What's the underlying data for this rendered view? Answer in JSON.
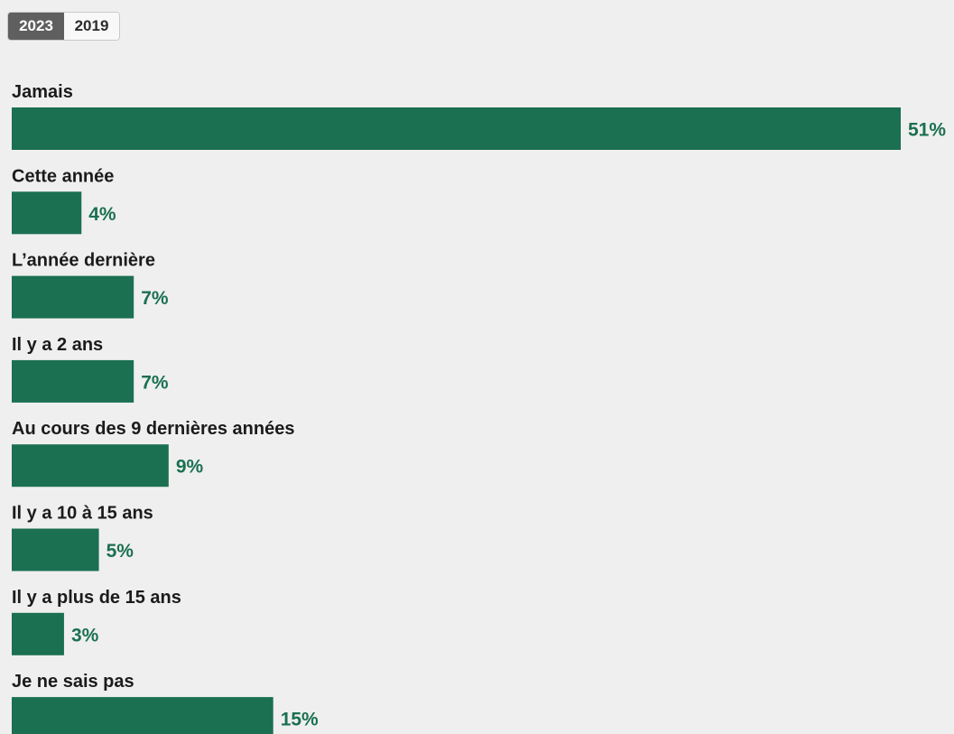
{
  "year_toggle": {
    "options": [
      {
        "label": "2023",
        "selected": true
      },
      {
        "label": "2019",
        "selected": false
      }
    ]
  },
  "colors": {
    "bar": "#1b7051",
    "value_text": "#1b7051",
    "background": "#efefef"
  },
  "chart_data": {
    "type": "bar",
    "orientation": "horizontal",
    "unit": "%",
    "categories": [
      "Jamais",
      "Cette année",
      "L’année dernière",
      "Il y a 2 ans",
      "Au cours des 9 dernières années",
      "Il y a 10 à 15 ans",
      "Il y a plus de 15 ans",
      "Je ne sais pas"
    ],
    "values": [
      51,
      4,
      7,
      7,
      9,
      5,
      3,
      15
    ],
    "value_labels": [
      "51%",
      "4%",
      "7%",
      "7%",
      "9%",
      "5%",
      "3%",
      "15%"
    ],
    "xlim": [
      0,
      51
    ],
    "grid": false,
    "legend": "none"
  }
}
